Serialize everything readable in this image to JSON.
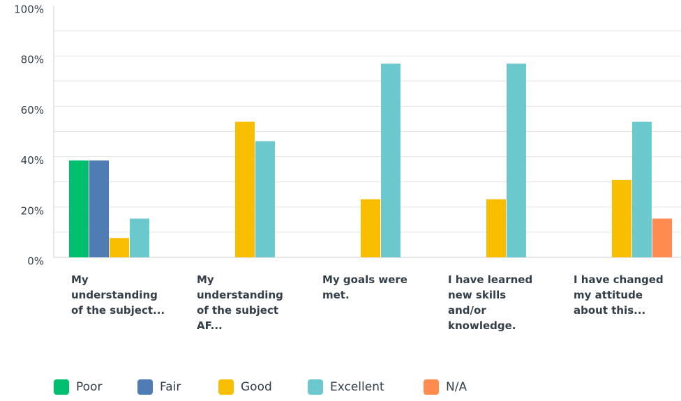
{
  "chart_data": {
    "type": "bar",
    "categories": [
      "My understanding of the subject...",
      "My understanding of the subject AF...",
      "My goals were met.",
      "I have learned new skills and/or knowledge.",
      "I have changed my attitude about this..."
    ],
    "series": [
      {
        "name": "Poor",
        "color": "#00bf6f",
        "values": [
          38.46,
          0,
          0,
          0,
          0
        ]
      },
      {
        "name": "Fair",
        "color": "#507cb6",
        "values": [
          38.46,
          0,
          0,
          0,
          0
        ]
      },
      {
        "name": "Good",
        "color": "#f9be00",
        "values": [
          7.69,
          53.85,
          23.08,
          23.08,
          30.77
        ]
      },
      {
        "name": "Excellent",
        "color": "#6bc8cd",
        "values": [
          15.38,
          46.15,
          76.92,
          76.92,
          53.85
        ]
      },
      {
        "name": "N/A",
        "color": "#ff8b4f",
        "values": [
          0,
          0,
          0,
          0,
          15.38
        ]
      }
    ],
    "ylim": [
      0,
      100
    ],
    "yticks": [
      {
        "value": 0,
        "label": "0%"
      },
      {
        "value": 20,
        "label": "20%"
      },
      {
        "value": 40,
        "label": "40%"
      },
      {
        "value": 60,
        "label": "60%"
      },
      {
        "value": 80,
        "label": "80%"
      },
      {
        "value": 100,
        "label": "100%"
      }
    ],
    "ygrid": [
      10,
      20,
      30,
      40,
      50,
      60,
      70,
      80,
      90
    ],
    "grid": true
  }
}
